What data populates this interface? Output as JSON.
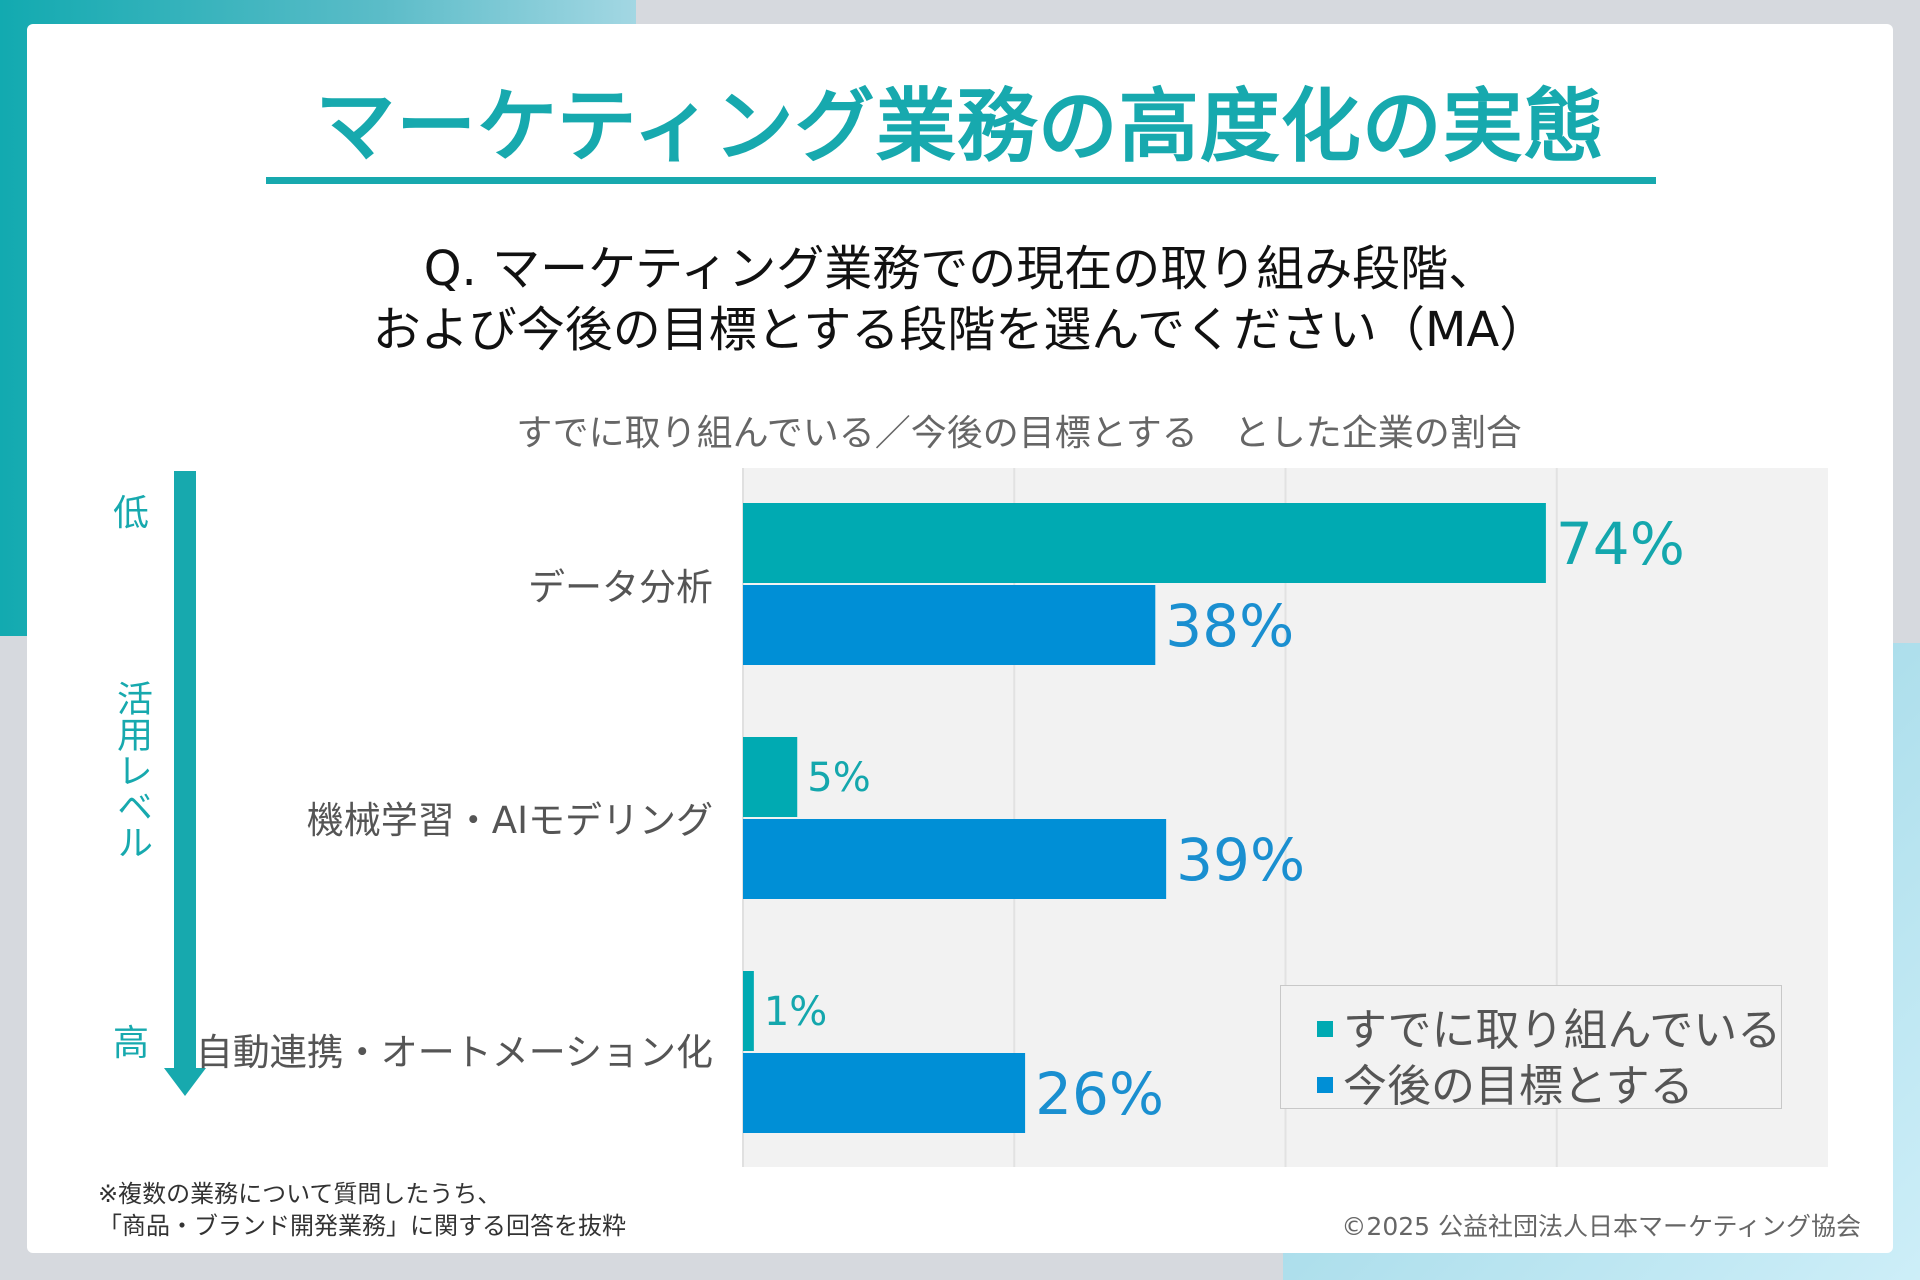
{
  "title": "マーケティング業務の高度化の実態",
  "question": {
    "line1": "Q. マーケティング業務での現在の取り組み段階、",
    "line2": "および今後の目標とする段階を選んでください（MA）"
  },
  "level_axis": {
    "low": "低",
    "label": "活用レベル",
    "high": "高"
  },
  "footnote": {
    "line1": "※複数の業務について質問したうち、",
    "line2": "「商品・ブランド開発業務」に関する回答を抜粋"
  },
  "copyright": "©2025 公益社団法人日本マーケティング協会",
  "chart_data": {
    "type": "bar",
    "orientation": "horizontal",
    "title": "すでに取り組んでいる／今後の目標とする　とした企業の割合",
    "categories": [
      "データ分析",
      "機械学習・AIモデリング",
      "自動連携・オートメーション化"
    ],
    "series": [
      {
        "name": "すでに取り組んでいる",
        "values": [
          74,
          5,
          1
        ],
        "labels": [
          "74%",
          "5%",
          "1%"
        ],
        "color": "#00aab2"
      },
      {
        "name": "今後の目標とする",
        "values": [
          38,
          39,
          26
        ],
        "labels": [
          "38%",
          "39%",
          "26%"
        ],
        "color": "#008fd6"
      }
    ],
    "xlim": [
      0,
      100
    ],
    "grid_step": 25,
    "grid": true,
    "legend": "bottom-right",
    "unit": "%"
  }
}
